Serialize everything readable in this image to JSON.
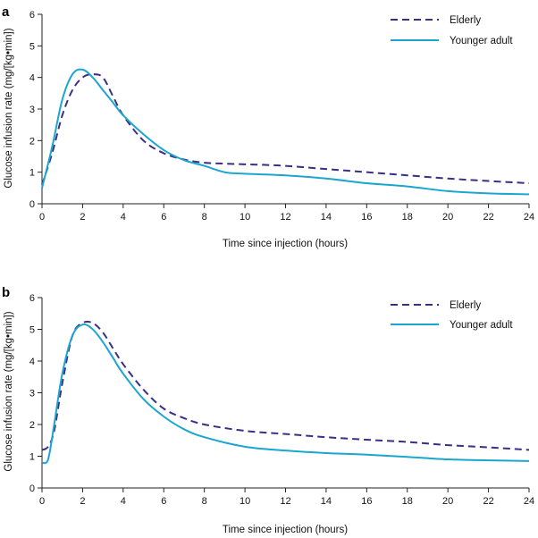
{
  "chart_data": [
    {
      "panel_label": "a",
      "type": "line",
      "xlabel": "Time since injection (hours)",
      "ylabel": "Glucose infusion rate (mg/[kg•min])",
      "xlim": [
        0,
        24
      ],
      "ylim": [
        0,
        6
      ],
      "xticks": [
        0,
        2,
        4,
        6,
        8,
        10,
        12,
        14,
        16,
        18,
        20,
        22,
        24
      ],
      "yticks": [
        0,
        1,
        2,
        3,
        4,
        5,
        6
      ],
      "legend_position": "top-right",
      "series": [
        {
          "name": "Elderly",
          "style": "dashed",
          "color": "#3a2f86",
          "x": [
            0,
            0.5,
            1,
            1.5,
            2,
            2.5,
            3,
            3.5,
            4,
            5,
            6,
            7,
            8,
            9,
            10,
            11,
            12,
            14,
            16,
            18,
            20,
            22,
            24
          ],
          "y": [
            0.6,
            1.6,
            2.8,
            3.6,
            4.0,
            4.1,
            4.0,
            3.4,
            2.8,
            2.0,
            1.6,
            1.4,
            1.3,
            1.27,
            1.25,
            1.23,
            1.2,
            1.1,
            1.0,
            0.9,
            0.8,
            0.72,
            0.65
          ]
        },
        {
          "name": "Younger adult",
          "style": "solid",
          "color": "#1ba6cf",
          "x": [
            0,
            0.5,
            1,
            1.5,
            2,
            2.5,
            3,
            3.5,
            4,
            5,
            6,
            7,
            8,
            9,
            10,
            12,
            14,
            16,
            18,
            20,
            22,
            24
          ],
          "y": [
            0.5,
            1.8,
            3.3,
            4.1,
            4.25,
            4.0,
            3.6,
            3.2,
            2.8,
            2.2,
            1.7,
            1.38,
            1.2,
            1.0,
            0.95,
            0.9,
            0.8,
            0.65,
            0.55,
            0.4,
            0.33,
            0.3
          ]
        }
      ]
    },
    {
      "panel_label": "b",
      "type": "line",
      "xlabel": "Time since injection (hours)",
      "ylabel": "Glucose infusion rate (mg/[kg•min])",
      "xlim": [
        0,
        24
      ],
      "ylim": [
        0,
        6
      ],
      "xticks": [
        0,
        2,
        4,
        6,
        8,
        10,
        12,
        14,
        16,
        18,
        20,
        22,
        24
      ],
      "yticks": [
        0,
        1,
        2,
        3,
        4,
        5,
        6
      ],
      "legend_position": "top-right",
      "series": [
        {
          "name": "Elderly",
          "style": "dashed",
          "color": "#3a2f86",
          "x": [
            0,
            0.3,
            0.6,
            1,
            1.5,
            2,
            2.5,
            3,
            3.5,
            4,
            5,
            6,
            7,
            8,
            10,
            12,
            14,
            16,
            18,
            20,
            22,
            24
          ],
          "y": [
            1.2,
            1.3,
            1.8,
            3.3,
            4.8,
            5.2,
            5.2,
            4.9,
            4.4,
            3.9,
            3.1,
            2.5,
            2.2,
            2.0,
            1.8,
            1.7,
            1.6,
            1.52,
            1.45,
            1.35,
            1.28,
            1.2
          ]
        },
        {
          "name": "Younger adult",
          "style": "solid",
          "color": "#1ba6cf",
          "x": [
            0,
            0.3,
            0.6,
            1,
            1.5,
            2,
            2.5,
            3,
            3.5,
            4,
            5,
            6,
            7,
            8,
            10,
            12,
            14,
            16,
            18,
            20,
            22,
            24
          ],
          "y": [
            0.8,
            0.9,
            2.0,
            3.6,
            4.8,
            5.15,
            5.0,
            4.6,
            4.1,
            3.6,
            2.8,
            2.25,
            1.85,
            1.6,
            1.3,
            1.18,
            1.1,
            1.05,
            0.98,
            0.9,
            0.87,
            0.85
          ]
        }
      ]
    }
  ]
}
